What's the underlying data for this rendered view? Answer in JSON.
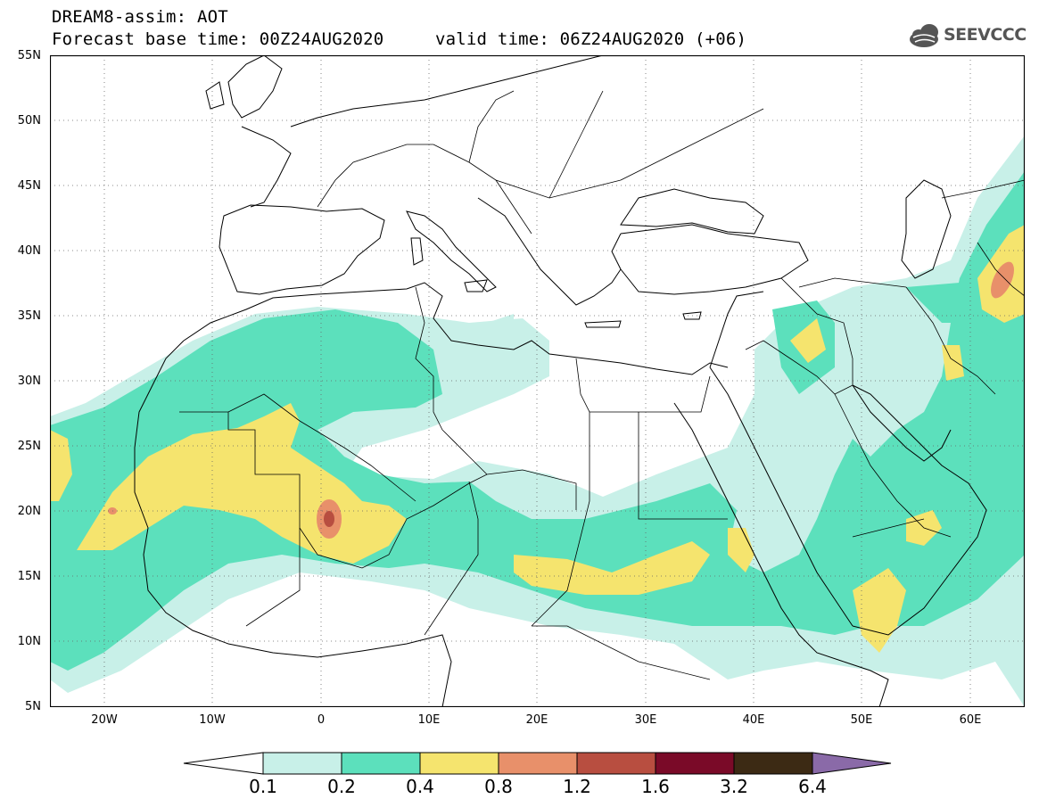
{
  "title": {
    "line1": "DREAM8-assim: AOT",
    "base_time": "Forecast base time: 00Z24AUG2020",
    "valid_time": "valid time: 06Z24AUG2020 (+06)"
  },
  "logo": {
    "text": "SEEVCCC",
    "icon": "cloud-icon"
  },
  "map": {
    "lat_labels": [
      "55N",
      "50N",
      "45N",
      "40N",
      "35N",
      "30N",
      "25N",
      "20N",
      "15N",
      "10N",
      "5N"
    ],
    "lon_labels": [
      "20W",
      "10W",
      "0",
      "10E",
      "20E",
      "30E",
      "40E",
      "50E",
      "60E"
    ],
    "lat_range": [
      5,
      55
    ],
    "lon_range": [
      -25,
      65
    ],
    "grid": true
  },
  "legend": {
    "levels": [
      "0.1",
      "0.2",
      "0.4",
      "0.8",
      "1.2",
      "1.6",
      "3.2",
      "6.4"
    ],
    "colors": [
      "#ffffff",
      "#c8f0e8",
      "#5ce0bc",
      "#f5e46e",
      "#e8906a",
      "#b84e40",
      "#7a0a28",
      "#3c2a14",
      "#8a6aa8"
    ]
  }
}
